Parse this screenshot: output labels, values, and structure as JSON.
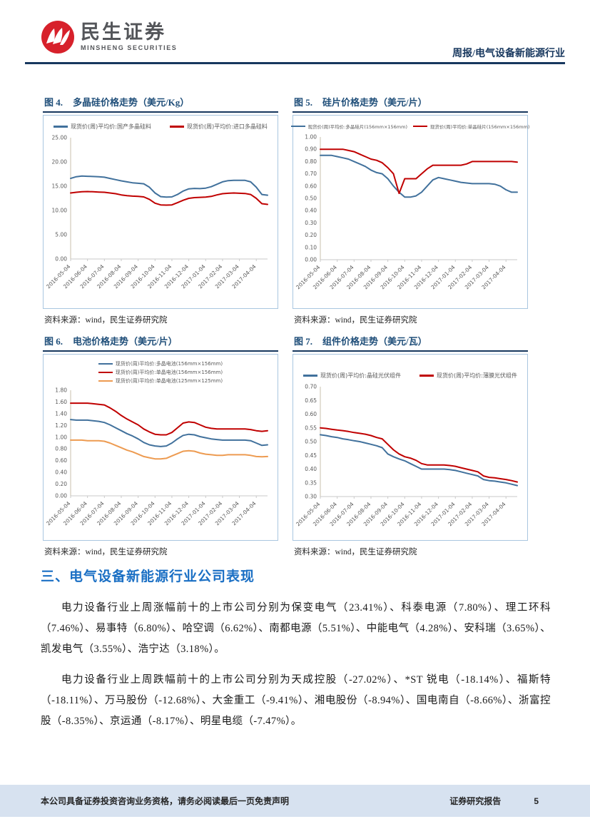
{
  "header": {
    "brand_cn": "民生证券",
    "brand_en": "MINSHENG SECURITIES",
    "doc_type": "周报/电气设备新能源行业"
  },
  "colors": {
    "navy": "#17375E",
    "title_blue": "#1F4E79",
    "heading_blue": "#1A6FC4",
    "line_blue": "#41719C",
    "line_red": "#C00000",
    "line_orange": "#ED9B51",
    "footer_bg": "#D7E2F0",
    "logo_red": "#D7212B"
  },
  "chart_data": [
    {
      "type": "line",
      "figure_label": "图 4.",
      "title": "多晶硅价格走势（美元/Kg）",
      "source": "资料来源：wind，民生证券研究院",
      "ylim": [
        0,
        25
      ],
      "ystep": 5,
      "grid": false,
      "legend_position": "top",
      "categories": [
        "2016-05-04",
        "2016-06-04",
        "2016-07-04",
        "2016-08-04",
        "2016-09-04",
        "2016-10-04",
        "2016-11-04",
        "2016-12-04",
        "2017-01-04",
        "2017-02-04",
        "2017-03-04",
        "2017-04-04"
      ],
      "series": [
        {
          "name": "现货价(周)平均价:国产多晶硅料",
          "color": "#41719C",
          "values": [
            16.6,
            16.95,
            17.1,
            17.05,
            17.0,
            16.95,
            16.85,
            16.6,
            16.35,
            16.1,
            15.9,
            15.7,
            15.6,
            15.5,
            14.8,
            13.6,
            12.85,
            12.75,
            12.8,
            13.3,
            14.0,
            14.45,
            14.55,
            14.5,
            14.6,
            14.9,
            15.4,
            15.9,
            16.15,
            16.2,
            16.2,
            16.2,
            15.9,
            14.8,
            13.3,
            13.15
          ]
        },
        {
          "name": "现货价(周)平均价:进口多晶硅料",
          "color": "#C00000",
          "values": [
            13.6,
            13.75,
            13.85,
            13.9,
            13.85,
            13.8,
            13.75,
            13.6,
            13.45,
            13.2,
            13.05,
            12.95,
            12.9,
            12.8,
            12.3,
            11.5,
            11.15,
            11.1,
            11.15,
            11.6,
            12.1,
            12.5,
            12.65,
            12.7,
            12.75,
            12.9,
            13.2,
            13.45,
            13.55,
            13.6,
            13.55,
            13.5,
            13.3,
            12.5,
            11.4,
            11.25
          ]
        }
      ]
    },
    {
      "type": "line",
      "figure_label": "图 5.",
      "title": "硅片价格走势（美元/片）",
      "source": "资料来源：wind，民生证券研究院",
      "ylim": [
        0,
        1.0
      ],
      "ystep": 0.1,
      "grid": false,
      "legend_position": "top",
      "categories": [
        "2016-05-04",
        "2016-06-04",
        "2016-07-04",
        "2016-08-04",
        "2016-09-04",
        "2016-10-04",
        "2016-11-04",
        "2016-12-04",
        "2017-01-04",
        "2017-02-04",
        "2017-03-04",
        "2017-04-04"
      ],
      "series": [
        {
          "name": "现货价(周)平均价:多晶硅片(156mm×156mm)",
          "color": "#41719C",
          "values": [
            0.85,
            0.85,
            0.85,
            0.84,
            0.83,
            0.82,
            0.8,
            0.78,
            0.76,
            0.73,
            0.71,
            0.7,
            0.66,
            0.6,
            0.55,
            0.51,
            0.51,
            0.52,
            0.55,
            0.6,
            0.65,
            0.67,
            0.66,
            0.65,
            0.64,
            0.63,
            0.625,
            0.62,
            0.62,
            0.62,
            0.62,
            0.615,
            0.6,
            0.57,
            0.55,
            0.55
          ]
        },
        {
          "name": "现货价(周)平均价:单晶硅片(156mm×156mm)",
          "color": "#C00000",
          "values": [
            0.9,
            0.9,
            0.9,
            0.9,
            0.9,
            0.89,
            0.88,
            0.86,
            0.84,
            0.82,
            0.81,
            0.79,
            0.75,
            0.7,
            0.54,
            0.66,
            0.66,
            0.66,
            0.7,
            0.74,
            0.77,
            0.77,
            0.77,
            0.77,
            0.77,
            0.77,
            0.78,
            0.8,
            0.8,
            0.8,
            0.8,
            0.8,
            0.8,
            0.8,
            0.8,
            0.795
          ]
        }
      ]
    },
    {
      "type": "line",
      "figure_label": "图 6.",
      "title": "电池价格走势（美元/片）",
      "source": "资料来源：wind，民生证券研究院",
      "ylim": [
        0,
        1.8
      ],
      "ystep": 0.2,
      "grid": false,
      "legend_position": "top",
      "categories": [
        "2016-05-04",
        "2016-06-04",
        "2016-07-04",
        "2016-08-04",
        "2016-09-04",
        "2016-10-04",
        "2016-11-04",
        "2016-12-04",
        "2017-01-04",
        "2017-02-04",
        "2017-03-04",
        "2017-04-04"
      ],
      "series": [
        {
          "name": "现货价(周)平均价:多晶电池(156mm×156mm)",
          "color": "#41719C",
          "values": [
            1.3,
            1.29,
            1.29,
            1.29,
            1.28,
            1.27,
            1.25,
            1.21,
            1.16,
            1.11,
            1.06,
            1.02,
            0.97,
            0.91,
            0.87,
            0.85,
            0.84,
            0.85,
            0.9,
            0.97,
            1.03,
            1.05,
            1.04,
            1.01,
            0.99,
            0.97,
            0.96,
            0.95,
            0.95,
            0.95,
            0.95,
            0.95,
            0.94,
            0.9,
            0.86,
            0.87
          ]
        },
        {
          "name": "现货价(周)平均价:单晶电池(156mm×156mm)",
          "color": "#C00000",
          "values": [
            1.58,
            1.58,
            1.58,
            1.58,
            1.57,
            1.56,
            1.55,
            1.5,
            1.44,
            1.37,
            1.31,
            1.26,
            1.21,
            1.14,
            1.09,
            1.05,
            1.04,
            1.04,
            1.08,
            1.16,
            1.24,
            1.26,
            1.25,
            1.21,
            1.17,
            1.15,
            1.14,
            1.14,
            1.14,
            1.14,
            1.14,
            1.14,
            1.13,
            1.11,
            1.1,
            1.11
          ]
        },
        {
          "name": "现货价(周)平均价:单晶电池(125mm×125mm)",
          "color": "#ED9B51",
          "values": [
            0.95,
            0.95,
            0.95,
            0.94,
            0.94,
            0.94,
            0.93,
            0.9,
            0.86,
            0.82,
            0.78,
            0.75,
            0.71,
            0.67,
            0.65,
            0.63,
            0.63,
            0.64,
            0.68,
            0.72,
            0.76,
            0.77,
            0.76,
            0.73,
            0.71,
            0.7,
            0.69,
            0.69,
            0.7,
            0.7,
            0.7,
            0.7,
            0.69,
            0.67,
            0.665,
            0.67
          ]
        }
      ]
    },
    {
      "type": "line",
      "figure_label": "图 7.",
      "title": "组件价格走势（美元/瓦）",
      "source": "资料来源：wind，民生证券研究院",
      "ylim": [
        0.3,
        0.7
      ],
      "ystep": 0.05,
      "grid": false,
      "legend_position": "top",
      "categories": [
        "2016-05-04",
        "2016-06-04",
        "2016-07-04",
        "2016-08-04",
        "2016-09-04",
        "2016-10-04",
        "2016-11-04",
        "2016-12-04",
        "2017-01-04",
        "2017-02-04",
        "2017-03-04",
        "2017-04-04"
      ],
      "series": [
        {
          "name": "现货价(周)平均价:晶硅光伏组件",
          "color": "#41719C",
          "values": [
            0.525,
            0.522,
            0.518,
            0.515,
            0.51,
            0.507,
            0.503,
            0.5,
            0.495,
            0.49,
            0.485,
            0.478,
            0.455,
            0.445,
            0.437,
            0.43,
            0.42,
            0.41,
            0.4,
            0.4,
            0.4,
            0.4,
            0.4,
            0.398,
            0.395,
            0.39,
            0.385,
            0.38,
            0.375,
            0.362,
            0.358,
            0.356,
            0.353,
            0.35,
            0.345,
            0.34
          ]
        },
        {
          "name": "现货价(周)平均价:薄膜光伏组件",
          "color": "#C00000",
          "values": [
            0.55,
            0.548,
            0.545,
            0.542,
            0.54,
            0.537,
            0.533,
            0.53,
            0.527,
            0.522,
            0.515,
            0.51,
            0.49,
            0.47,
            0.455,
            0.445,
            0.44,
            0.432,
            0.42,
            0.415,
            0.415,
            0.415,
            0.415,
            0.413,
            0.41,
            0.405,
            0.4,
            0.395,
            0.39,
            0.375,
            0.37,
            0.368,
            0.365,
            0.362,
            0.358,
            0.353
          ]
        }
      ]
    }
  ],
  "section": {
    "heading": "三、电气设备新能源行业公司表现",
    "paragraphs": [
      "电力设备行业上周涨幅前十的上市公司分别为保变电气（23.41%）、科泰电源（7.80%）、理工环科（7.46%）、易事特（6.80%）、哈空调（6.62%）、南都电源（5.51%）、中能电气（4.28%）、安科瑞（3.65%）、凯发电气（3.55%）、浩宁达（3.18%）。",
      "电力设备行业上周跌幅前十的上市公司分别为天成控股（-27.02%）、*ST 锐电（-18.14%）、福斯特（-18.11%）、万马股份（-12.68%）、大金重工（-9.41%）、湘电股份（-8.94%）、国电南自（-8.66%）、浙富控股（-8.35%）、京运通（-8.17%）、明星电缆（-7.47%）。"
    ]
  },
  "footer": {
    "disclaimer": "本公司具备证券投资咨询业务资格，请务必阅读最后一页免责声明",
    "report_type": "证券研究报告",
    "page_number": "5"
  }
}
